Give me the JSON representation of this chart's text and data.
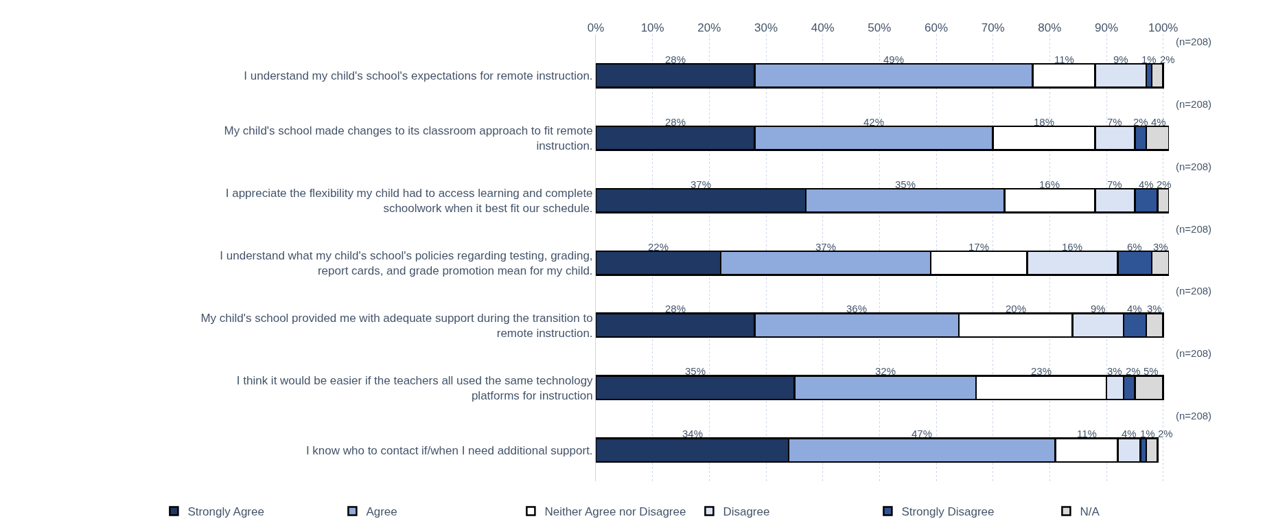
{
  "chart_data": {
    "type": "bar",
    "orientation": "horizontal",
    "stacked": true,
    "categories": [
      "I understand my child's school's expectations for remote instruction.",
      "My child's school made changes to its classroom approach to fit remote instruction.",
      "I appreciate the flexibility my child had to access learning and complete schoolwork when it best fit our schedule.",
      "I understand what my child's school's policies regarding testing, grading, report cards, and grade promotion mean for my child.",
      "My child's school provided me with adequate support during the transition to remote instruction.",
      "I think it would be easier if the teachers all used the same technology platforms for instruction",
      "I know who to contact if/when I need additional support."
    ],
    "series": [
      {
        "name": "Strongly Agree",
        "color": "#1f3864",
        "values": [
          28,
          28,
          37,
          22,
          28,
          35,
          34
        ],
        "value_labels": [
          "28%",
          "28%",
          "37%",
          "22%",
          "28%",
          "35%",
          "34%"
        ]
      },
      {
        "name": "Agree",
        "color": "#8faadc",
        "values": [
          49,
          42,
          35,
          37,
          36,
          32,
          47
        ],
        "value_labels": [
          "49%",
          "42%",
          "35%",
          "37%",
          "36%",
          "32%",
          "47%"
        ]
      },
      {
        "name": "Neither Agree nor Disagree",
        "color": "#ffffff",
        "values": [
          11,
          18,
          16,
          17,
          20,
          23,
          11
        ],
        "value_labels": [
          "11%",
          "18%",
          "16%",
          "17%",
          "20%",
          "23%",
          "11%"
        ]
      },
      {
        "name": "Disagree",
        "color": "#dae3f3",
        "values": [
          9,
          7,
          7,
          16,
          9,
          3,
          4
        ],
        "value_labels": [
          "9%",
          "7%",
          "7%",
          "16%",
          "9%",
          "3%",
          "4%"
        ]
      },
      {
        "name": "Strongly Disagree",
        "color": "#2f5597",
        "values": [
          1,
          2,
          4,
          6,
          4,
          2,
          1
        ],
        "value_labels": [
          "1%",
          "2%",
          "4%",
          "6%",
          "4%",
          "2%",
          "1%"
        ]
      },
      {
        "name": "N/A",
        "color": "#d9d9d9",
        "values": [
          2,
          4,
          2,
          3,
          3,
          5,
          2
        ],
        "value_labels": [
          "2%",
          "4%",
          "2%",
          "3%",
          "3%",
          "5%",
          "2%"
        ]
      }
    ],
    "xlim": [
      0,
      101
    ],
    "xticks": [
      {
        "value": 0,
        "label": "0%"
      },
      {
        "value": 10,
        "label": "10%"
      },
      {
        "value": 20,
        "label": "20%"
      },
      {
        "value": 30,
        "label": "30%"
      },
      {
        "value": 40,
        "label": "40%"
      },
      {
        "value": 50,
        "label": "50%"
      },
      {
        "value": 60,
        "label": "60%"
      },
      {
        "value": 70,
        "label": "70%"
      },
      {
        "value": 80,
        "label": "80%"
      },
      {
        "value": 90,
        "label": "90%"
      },
      {
        "value": 100,
        "label": "100%"
      }
    ],
    "grid": "x",
    "legend": "bottom",
    "annotations": [
      "(n=208)",
      "(n=208)",
      "(n=208)",
      "(n=208)",
      "(n=208)",
      "(n=208)",
      "(n=208)"
    ]
  }
}
